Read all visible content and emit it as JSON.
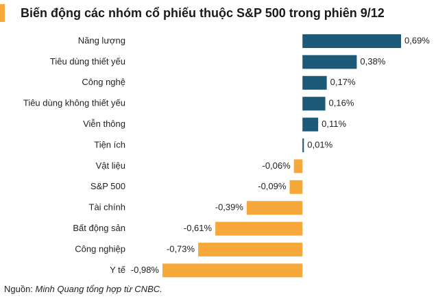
{
  "chart_data": {
    "type": "barh",
    "title": "Biến động các nhóm cổ phiếu thuộc S&P 500 trong phiên 9/12",
    "categories": [
      "Năng lượng",
      "Tiêu dùng thiết yếu",
      "Công nghệ",
      "Tiêu dùng không thiết yếu",
      "Viễn thông",
      "Tiện ích",
      "Vật liệu",
      "S&P 500",
      "Tài chính",
      "Bất động sản",
      "Công nghiệp",
      "Y tế"
    ],
    "values": [
      0.69,
      0.38,
      0.17,
      0.16,
      0.11,
      0.01,
      -0.06,
      -0.09,
      -0.39,
      -0.61,
      -0.73,
      -0.98
    ],
    "value_labels": [
      "0,69%",
      "0,38%",
      "0,17%",
      "0,16%",
      "0,11%",
      "0,01%",
      "-0,06%",
      "-0,09%",
      "-0,39%",
      "-0,61%",
      "-0,73%",
      "-0,98%"
    ],
    "positive_color": "#1d5a79",
    "negative_color": "#f7a83b",
    "source_prefix": "Nguồn:",
    "source_text": "Minh Quang tổng hợp từ CNBC."
  }
}
